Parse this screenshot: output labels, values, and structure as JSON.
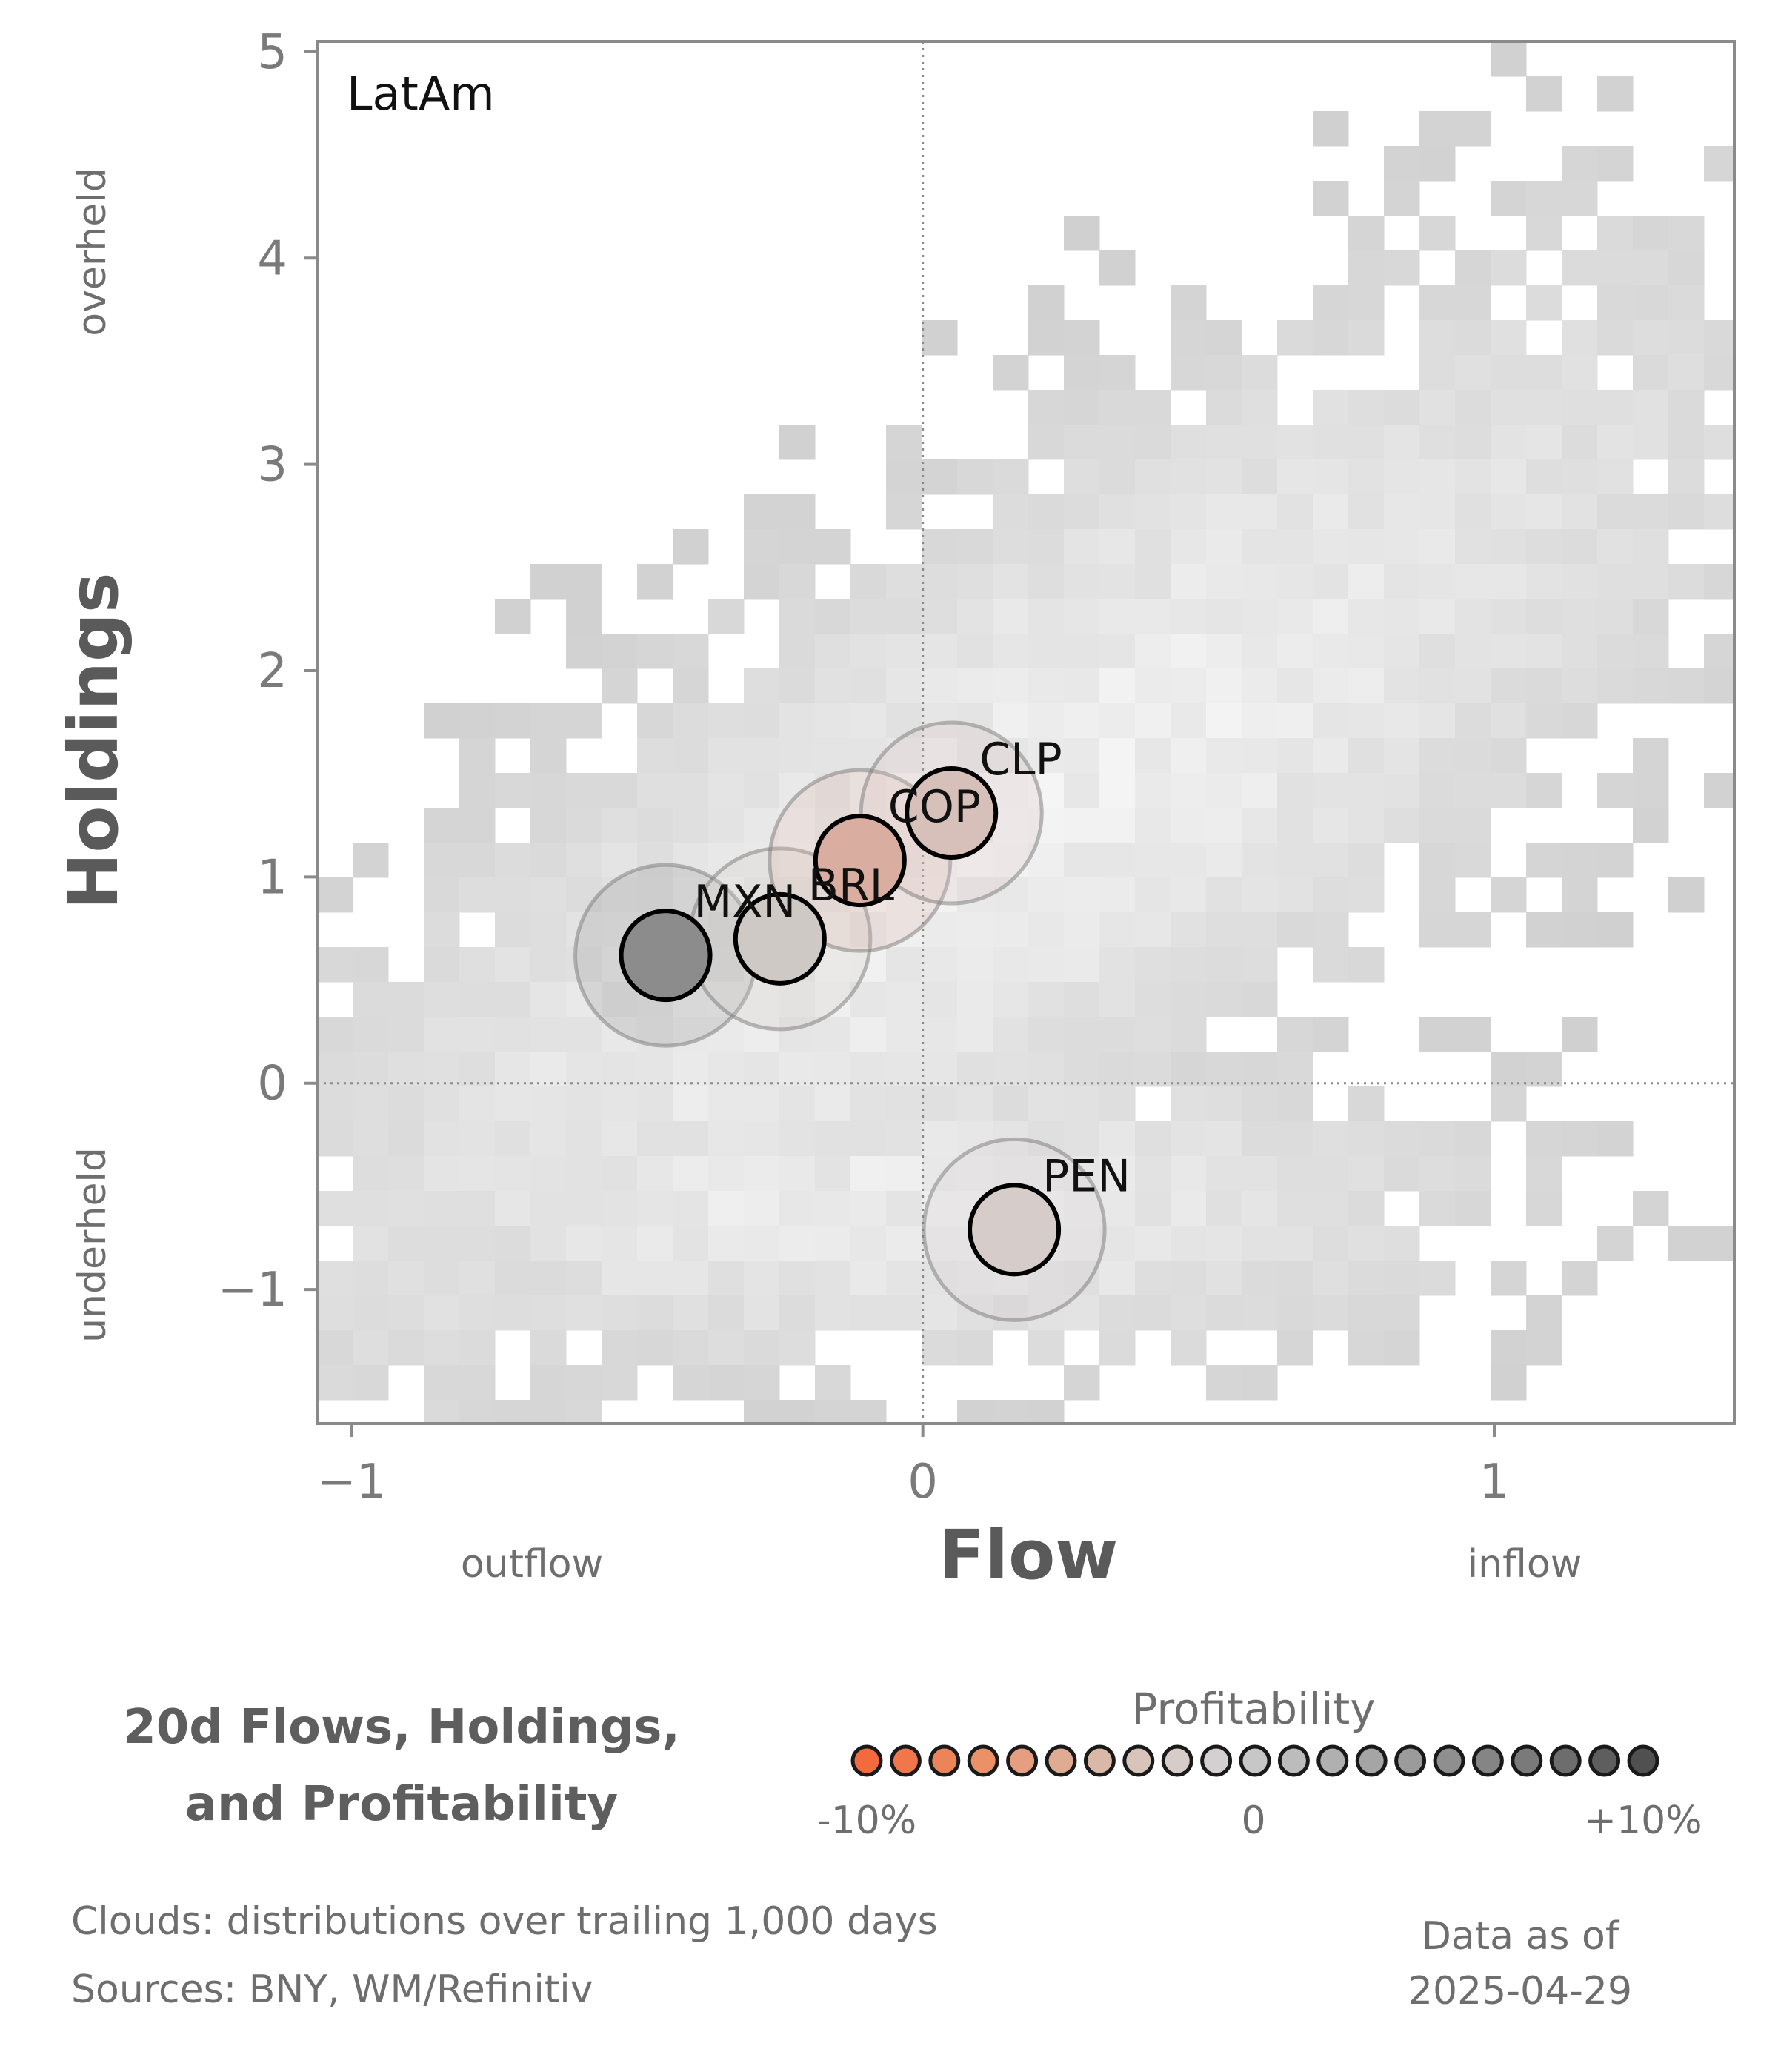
{
  "chart_data": {
    "type": "scatter",
    "region_label": "LatAm",
    "xlabel": "Flow",
    "ylabel": "Holdings",
    "x_side_labels": [
      "outflow",
      "inflow"
    ],
    "y_side_labels": [
      "overheld",
      "underheld"
    ],
    "xlim": [
      -1.06,
      1.42
    ],
    "ylim": [
      -1.65,
      5.05
    ],
    "x_ticks": [
      {
        "value": -1,
        "label": "−1"
      },
      {
        "value": 0,
        "label": "0"
      },
      {
        "value": 1,
        "label": "1"
      }
    ],
    "y_ticks": [
      {
        "value": -1,
        "label": "−1"
      },
      {
        "value": 0,
        "label": "0"
      },
      {
        "value": 1,
        "label": "1"
      },
      {
        "value": 2,
        "label": "2"
      },
      {
        "value": 3,
        "label": "3"
      },
      {
        "value": 4,
        "label": "4"
      },
      {
        "value": 5,
        "label": "5"
      }
    ],
    "reference_lines": {
      "x": 0,
      "y": 0
    },
    "background": "grey 2D histogram of flow/holdings distributions over trailing 1,000 days",
    "points": [
      {
        "label": "MXN",
        "flow": -0.45,
        "holdings": 0.62,
        "profitability": 9.0,
        "color": "#8c8c8d"
      },
      {
        "label": "BRL",
        "flow": -0.25,
        "holdings": 0.7,
        "profitability": 0.5,
        "color": "#cfc9c6"
      },
      {
        "label": "COP",
        "flow": -0.11,
        "holdings": 1.08,
        "profitability": -3.5,
        "color": "#d9ada0"
      },
      {
        "label": "CLP",
        "flow": 0.05,
        "holdings": 1.31,
        "profitability": -1.5,
        "color": "#d7c0ba"
      },
      {
        "label": "PEN",
        "flow": 0.16,
        "holdings": -0.71,
        "profitability": -0.5,
        "color": "#d6cdcb"
      }
    ],
    "colorbar": {
      "title": "Profitability",
      "min_label": "-10%",
      "mid_label": "0",
      "max_label": "+10%",
      "colors": [
        "#f26a3d",
        "#f0764b",
        "#ed8459",
        "#ea9168",
        "#e59f80",
        "#dfab93",
        "#d9b8a8",
        "#d8c4bb",
        "#d7cdc8",
        "#d3d0cf",
        "#c7c7c7",
        "#bcbcbc",
        "#b0b0b0",
        "#a5a5a5",
        "#9b9b9b",
        "#8f8f8f",
        "#858585",
        "#7a7a7a",
        "#6d6d6d",
        "#5e5e5e",
        "#505050"
      ]
    }
  },
  "title_lines": [
    "20d Flows, Holdings,",
    "and Profitability"
  ],
  "footnotes": {
    "clouds": "Clouds:  distributions over trailing 1,000 days",
    "sources": "Sources:  BNY, WM/Refinitiv"
  },
  "data_as_of": {
    "label": "Data as of",
    "date": "2025-04-29"
  }
}
